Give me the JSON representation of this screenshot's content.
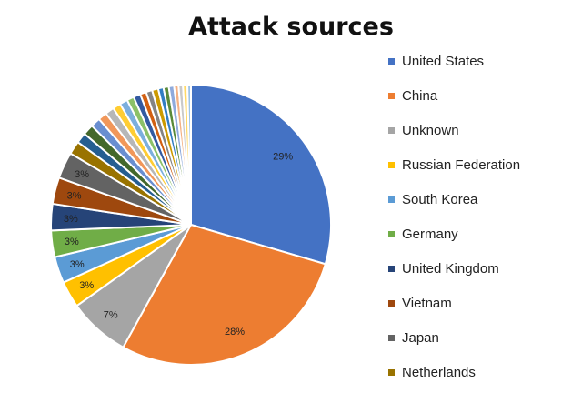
{
  "chart_data": {
    "type": "pie",
    "title": "Attack sources",
    "slices": [
      {
        "name": "United States",
        "value": 29,
        "label": "29%",
        "color": "#4472C4"
      },
      {
        "name": "China",
        "value": 28,
        "label": "28%",
        "color": "#ED7D31"
      },
      {
        "name": "Unknown",
        "value": 7,
        "label": "7%",
        "color": "#A5A5A5"
      },
      {
        "name": "Russian Federation",
        "value": 3,
        "label": "3%",
        "color": "#FFC000"
      },
      {
        "name": "South Korea",
        "value": 3,
        "label": "3%",
        "color": "#5B9BD5"
      },
      {
        "name": "Germany",
        "value": 3,
        "label": "3%",
        "color": "#70AD47"
      },
      {
        "name": "United Kingdom",
        "value": 3,
        "label": "3%",
        "color": "#264478"
      },
      {
        "name": "Vietnam",
        "value": 3,
        "label": "3%",
        "color": "#9E480E"
      },
      {
        "name": "Japan",
        "value": 3,
        "label": "3%",
        "color": "#636363"
      },
      {
        "name": "Netherlands",
        "value": 1.5,
        "label": "",
        "color": "#997300"
      },
      {
        "name": "",
        "value": 1.2,
        "label": "",
        "color": "#255E91"
      },
      {
        "name": "",
        "value": 1.2,
        "label": "",
        "color": "#43682B"
      },
      {
        "name": "",
        "value": 1.1,
        "label": "",
        "color": "#698ED0"
      },
      {
        "name": "",
        "value": 1.0,
        "label": "",
        "color": "#F1975A"
      },
      {
        "name": "",
        "value": 1.0,
        "label": "",
        "color": "#B7B7B7"
      },
      {
        "name": "",
        "value": 0.9,
        "label": "",
        "color": "#FFCD33"
      },
      {
        "name": "",
        "value": 0.9,
        "label": "",
        "color": "#7CAFDD"
      },
      {
        "name": "",
        "value": 0.8,
        "label": "",
        "color": "#8CC168"
      },
      {
        "name": "",
        "value": 0.8,
        "label": "",
        "color": "#335AA1"
      },
      {
        "name": "",
        "value": 0.7,
        "label": "",
        "color": "#D26012"
      },
      {
        "name": "",
        "value": 0.7,
        "label": "",
        "color": "#848484"
      },
      {
        "name": "",
        "value": 0.7,
        "label": "",
        "color": "#CC9A00"
      },
      {
        "name": "",
        "value": 0.6,
        "label": "",
        "color": "#327DC2"
      },
      {
        "name": "",
        "value": 0.6,
        "label": "",
        "color": "#5A8A39"
      },
      {
        "name": "",
        "value": 0.6,
        "label": "",
        "color": "#8FAADC"
      },
      {
        "name": "",
        "value": 0.5,
        "label": "",
        "color": "#F4B183"
      },
      {
        "name": "",
        "value": 0.5,
        "label": "",
        "color": "#C9C9C9"
      },
      {
        "name": "",
        "value": 0.5,
        "label": "",
        "color": "#FFD966"
      },
      {
        "name": "",
        "value": 0.4,
        "label": "",
        "color": "#9DC3E6"
      }
    ],
    "legend_placement": "right"
  }
}
